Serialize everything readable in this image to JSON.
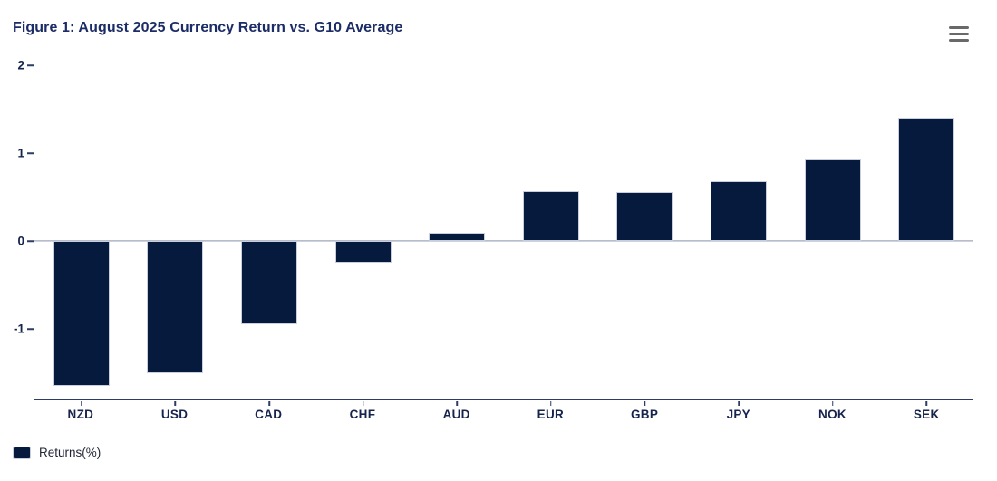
{
  "header": {
    "title": "Figure 1: August 2025 Currency Return vs. G10 Average"
  },
  "export_menu": {
    "icon": "hamburger-menu-icon",
    "color": "#696969"
  },
  "chart_data": {
    "type": "bar",
    "title": "Figure 1: August 2025 Currency Return vs. G10 Average",
    "categories": [
      "NZD",
      "USD",
      "CAD",
      "CHF",
      "AUD",
      "EUR",
      "GBP",
      "JPY",
      "NOK",
      "SEK"
    ],
    "series": [
      {
        "name": "Returns(%)",
        "values": [
          -1.65,
          -1.5,
          -0.95,
          -0.25,
          0.1,
          0.57,
          0.56,
          0.68,
          0.93,
          1.4
        ]
      }
    ],
    "xlabel": "",
    "ylabel": "",
    "ylim": [
      -1.8,
      2
    ],
    "yticks": [
      2,
      1,
      0,
      -1
    ],
    "grid": false,
    "legend_position": "bottom-left",
    "bar_color": "#051a3c"
  },
  "legend": {
    "label": "Returns(%)",
    "swatch_color": "#051a3c"
  },
  "colors": {
    "bar": "#051a3c",
    "title_text": "#1c2c66",
    "axis_text": "#16244d",
    "axis_line": "#2c3c64",
    "zero_line": "#8790a8",
    "background": "#ffffff"
  }
}
